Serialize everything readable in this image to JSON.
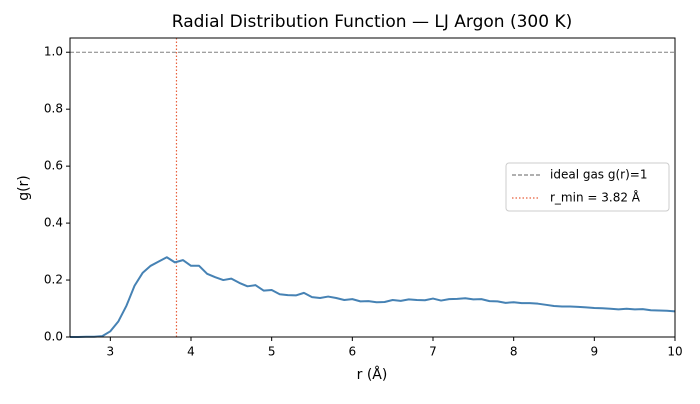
{
  "chart_data": {
    "type": "line",
    "title": "Radial Distribution Function — LJ Argon (300 K)",
    "xlabel": "r (Å)",
    "ylabel": "g(r)",
    "x": [
      2.5,
      2.6,
      2.7,
      2.8,
      2.9,
      3.0,
      3.1,
      3.2,
      3.3,
      3.4,
      3.5,
      3.6,
      3.7,
      3.8,
      3.9,
      4.0,
      4.1,
      4.2,
      4.3,
      4.4,
      4.5,
      4.6,
      4.7,
      4.8,
      4.9,
      5.0,
      5.1,
      5.2,
      5.3,
      5.4,
      5.5,
      5.6,
      5.7,
      5.8,
      5.9,
      6.0,
      6.1,
      6.2,
      6.3,
      6.4,
      6.5,
      6.6,
      6.7,
      6.8,
      6.9,
      7.0,
      7.1,
      7.2,
      7.3,
      7.4,
      7.5,
      7.6,
      7.7,
      7.8,
      7.9,
      8.0,
      8.1,
      8.2,
      8.3,
      8.4,
      8.5,
      8.6,
      8.7,
      8.8,
      8.9,
      9.0,
      9.1,
      9.2,
      9.3,
      9.4,
      9.5,
      9.6,
      9.7,
      9.8,
      9.9,
      10.0
    ],
    "values": [
      0,
      0,
      0.001,
      0.001,
      0.003,
      0.02,
      0.055,
      0.11,
      0.18,
      0.225,
      0.25,
      0.265,
      0.28,
      0.262,
      0.27,
      0.25,
      0.25,
      0.222,
      0.21,
      0.2,
      0.205,
      0.19,
      0.178,
      0.182,
      0.163,
      0.165,
      0.15,
      0.147,
      0.146,
      0.155,
      0.14,
      0.137,
      0.142,
      0.137,
      0.13,
      0.133,
      0.125,
      0.126,
      0.122,
      0.123,
      0.13,
      0.127,
      0.132,
      0.13,
      0.129,
      0.135,
      0.128,
      0.133,
      0.134,
      0.136,
      0.132,
      0.133,
      0.126,
      0.125,
      0.12,
      0.122,
      0.119,
      0.119,
      0.117,
      0.113,
      0.109,
      0.107,
      0.107,
      0.106,
      0.104,
      0.102,
      0.101,
      0.099,
      0.097,
      0.099,
      0.097,
      0.098,
      0.094,
      0.093,
      0.092,
      0.09
    ],
    "color": "#4682b4",
    "hlines": [
      {
        "value": 1,
        "label": "ideal gas g(r)=1",
        "color": "#808080"
      }
    ],
    "vlines": [
      {
        "value": 3.82,
        "label": "r_min = 3.82 Å",
        "color": "#e8603c"
      }
    ],
    "xlim": [
      2.5,
      10
    ],
    "xticks": [
      3,
      4,
      5,
      6,
      7,
      8,
      9,
      10
    ],
    "ylim": [
      0,
      1.05
    ],
    "yticks": [
      {
        "value": 0,
        "label": "0.0"
      },
      {
        "value": 0.2,
        "label": "0.2"
      },
      {
        "value": 0.4,
        "label": "0.4"
      },
      {
        "value": 0.6,
        "label": "0.6"
      },
      {
        "value": 0.8,
        "label": "0.8"
      },
      {
        "value": 1,
        "label": "1.0"
      }
    ],
    "legend": "center right"
  }
}
